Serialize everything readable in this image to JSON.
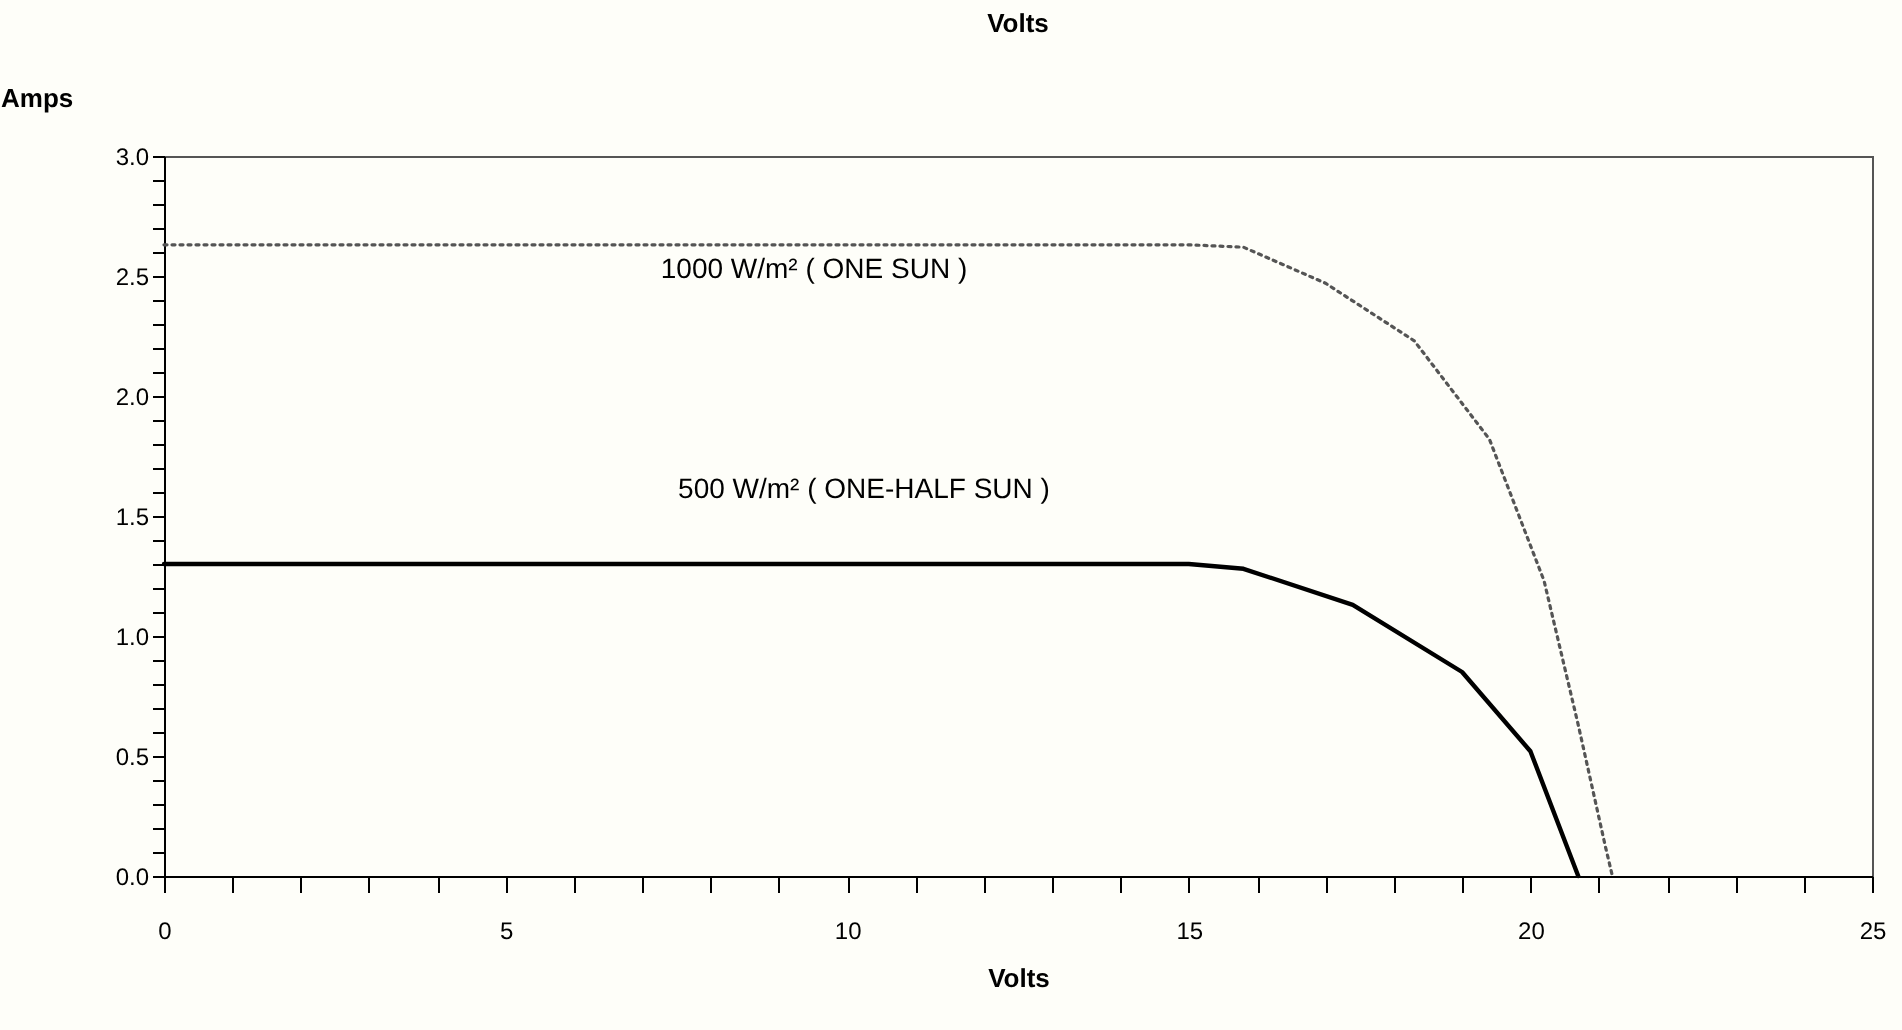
{
  "chart_data": {
    "type": "line",
    "title": "Volts",
    "xlabel": "Volts",
    "ylabel": "Amps",
    "xlim": [
      0,
      25
    ],
    "ylim": [
      0,
      3
    ],
    "xticks": [
      0,
      {
        "value": 1,
        "label": null
      },
      {
        "value": 2,
        "label": null
      },
      {
        "value": 3,
        "label": null
      },
      {
        "value": 4,
        "label": null
      },
      5,
      {
        "value": 6,
        "label": null
      },
      {
        "value": 7,
        "label": null
      },
      {
        "value": 8,
        "label": null
      },
      {
        "value": 9,
        "label": null
      },
      10,
      {
        "value": 11,
        "label": null
      },
      {
        "value": 12,
        "label": null
      },
      {
        "value": 13,
        "label": null
      },
      {
        "value": 14,
        "label": null
      },
      15,
      {
        "value": 16,
        "label": null
      },
      {
        "value": 17,
        "label": null
      },
      {
        "value": 18,
        "label": null
      },
      {
        "value": 19,
        "label": null
      },
      20,
      {
        "value": 21,
        "label": null
      },
      {
        "value": 22,
        "label": null
      },
      {
        "value": 23,
        "label": null
      },
      {
        "value": 24,
        "label": null
      },
      25
    ],
    "yticks": [
      {
        "value": 0,
        "label": "0.0"
      },
      {
        "value": 0.1,
        "label": null
      },
      {
        "value": 0.2,
        "label": null
      },
      {
        "value": 0.3,
        "label": null
      },
      {
        "value": 0.4,
        "label": null
      },
      0.5,
      {
        "value": 0.6,
        "label": null
      },
      {
        "value": 0.7,
        "label": null
      },
      {
        "value": 0.8,
        "label": null
      },
      {
        "value": 0.9,
        "label": null
      },
      {
        "value": 1,
        "label": "1.0"
      },
      {
        "value": 1.1,
        "label": null
      },
      {
        "value": 1.2,
        "label": null
      },
      {
        "value": 1.3,
        "label": null
      },
      {
        "value": 1.4,
        "label": null
      },
      1.5,
      {
        "value": 1.6,
        "label": null
      },
      {
        "value": 1.7,
        "label": null
      },
      {
        "value": 1.8,
        "label": null
      },
      {
        "value": 1.9,
        "label": null
      },
      {
        "value": 2,
        "label": "2.0"
      },
      {
        "value": 2.1,
        "label": null
      },
      {
        "value": 2.2,
        "label": null
      },
      {
        "value": 2.3,
        "label": null
      },
      {
        "value": 2.4,
        "label": null
      },
      2.5,
      {
        "value": 2.6,
        "label": null
      },
      {
        "value": 2.7,
        "label": null
      },
      {
        "value": 2.8,
        "label": null
      },
      {
        "value": 2.9,
        "label": null
      },
      {
        "value": 3,
        "label": "3.0"
      }
    ],
    "grid": false,
    "marker": "none",
    "series": [
      {
        "color": "#555555",
        "line_style": "dotted",
        "x": [
          0,
          15,
          15.8,
          17,
          18.3,
          19.4,
          20.2,
          20.7,
          21.1,
          21.2
        ],
        "values": [
          2.63,
          2.63,
          2.62,
          2.47,
          2.23,
          1.82,
          1.23,
          0.63,
          0.12,
          0
        ]
      },
      {
        "color": "#000000",
        "line_style": "solid",
        "x": [
          0,
          15,
          15.8,
          17.4,
          19,
          20,
          20.7
        ],
        "values": [
          1.3,
          1.3,
          1.28,
          1.13,
          0.85,
          0.52,
          0
        ]
      }
    ],
    "annotations": [
      "1000 W/m²   ( ONE SUN )",
      "500 W/m²   ( ONE-HALF SUN )"
    ]
  }
}
